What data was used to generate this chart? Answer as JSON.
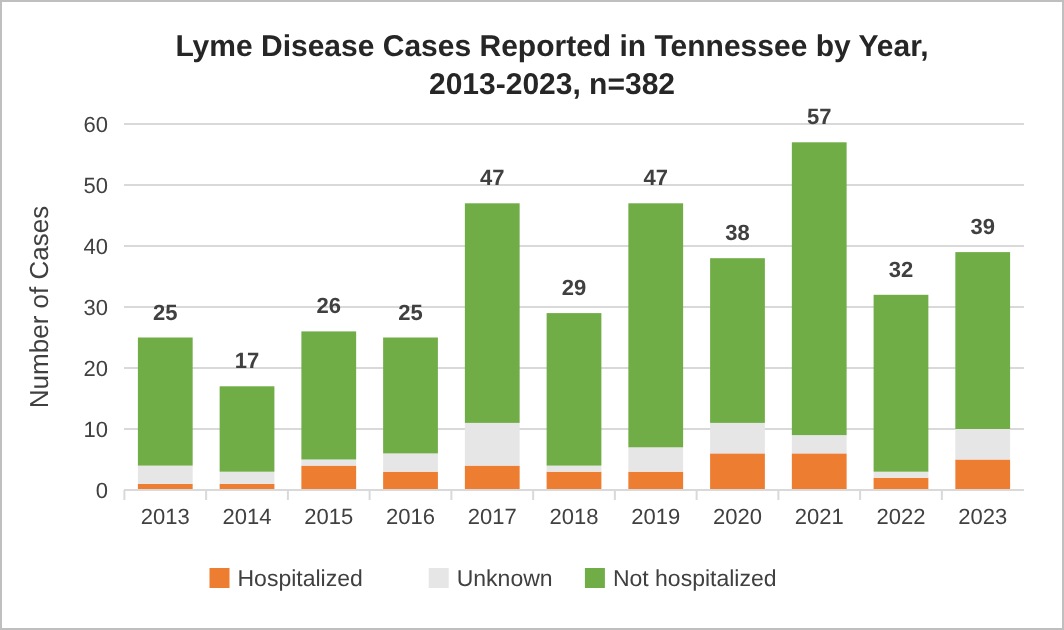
{
  "chart_data": {
    "type": "bar",
    "title": "Lyme Disease Cases Reported in Tennessee by Year, 2013-2023, n=382",
    "ylabel": "Number of Cases",
    "categories": [
      "2013",
      "2014",
      "2015",
      "2016",
      "2017",
      "2018",
      "2019",
      "2020",
      "2021",
      "2022",
      "2023"
    ],
    "stacked": true,
    "series": [
      {
        "name": "Hospitalized",
        "color": "#ed7d31",
        "values": [
          1,
          1,
          4,
          3,
          4,
          3,
          3,
          6,
          6,
          2,
          5
        ]
      },
      {
        "name": "Unknown",
        "color": "#e7e6e6",
        "values": [
          3,
          2,
          1,
          3,
          7,
          1,
          4,
          5,
          3,
          1,
          5
        ]
      },
      {
        "name": "Not hospitalized",
        "color": "#70ad47",
        "values": [
          21,
          14,
          21,
          19,
          36,
          25,
          40,
          27,
          48,
          29,
          29
        ]
      }
    ],
    "totals": [
      "25",
      "17",
      "26",
      "25",
      "47",
      "29",
      "47",
      "38",
      "57",
      "32",
      "39"
    ],
    "ylim": [
      0,
      60
    ],
    "yticks": [
      0,
      10,
      20,
      30,
      40,
      50,
      60
    ],
    "grid": "y",
    "legend": "bottom"
  }
}
